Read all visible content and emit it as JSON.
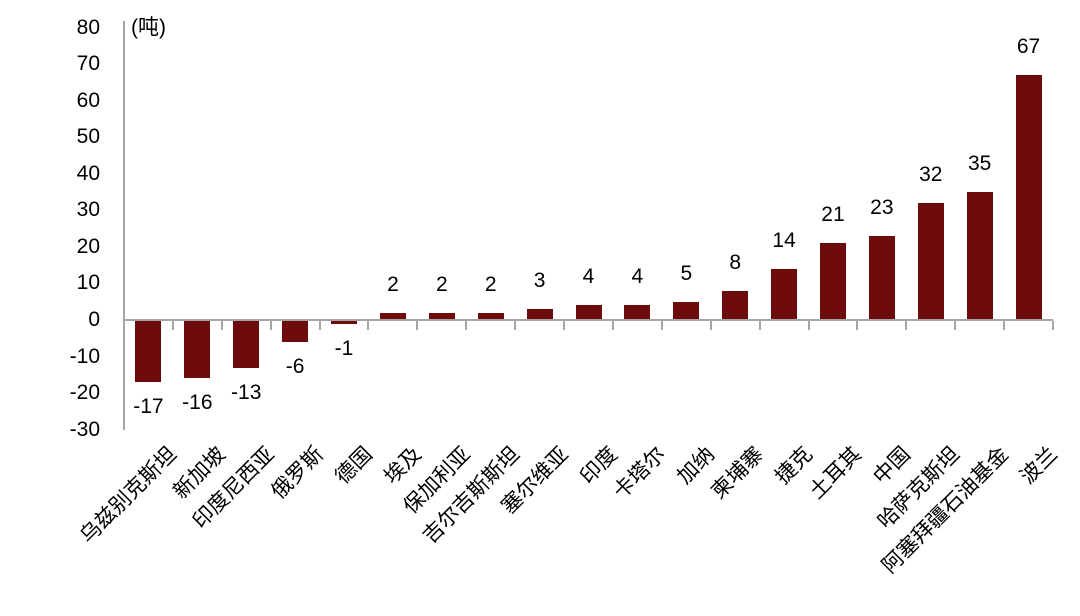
{
  "chart_data": {
    "type": "bar",
    "title": "",
    "unit_label": "(吨)",
    "categories": [
      "乌兹别克斯坦",
      "新加坡",
      "印度尼西亚",
      "俄罗斯",
      "德国",
      "埃及",
      "保加利亚",
      "吉尔吉斯斯坦",
      "塞尔维亚",
      "印度",
      "卡塔尔",
      "加纳",
      "柬埔寨",
      "捷克",
      "土耳其",
      "中国",
      "哈萨克斯坦",
      "阿塞拜疆石油基金",
      "波兰"
    ],
    "values": [
      -17,
      -16,
      -13,
      -6,
      -1,
      2,
      2,
      2,
      3,
      4,
      4,
      5,
      8,
      14,
      21,
      23,
      32,
      35,
      67
    ],
    "value_labels_shown": true,
    "xlabel": "",
    "ylabel": "(吨)",
    "ylim": [
      -30,
      80
    ],
    "ytick_interval": 10,
    "yticks": [
      80,
      70,
      60,
      50,
      40,
      30,
      20,
      10,
      0,
      -10,
      -20,
      -30
    ],
    "grid": false,
    "legend": null,
    "bar_color": "#6d0b0a",
    "axis_color": "#a6a6a6",
    "text_color": "#000000",
    "background_color": "#ffffff"
  }
}
